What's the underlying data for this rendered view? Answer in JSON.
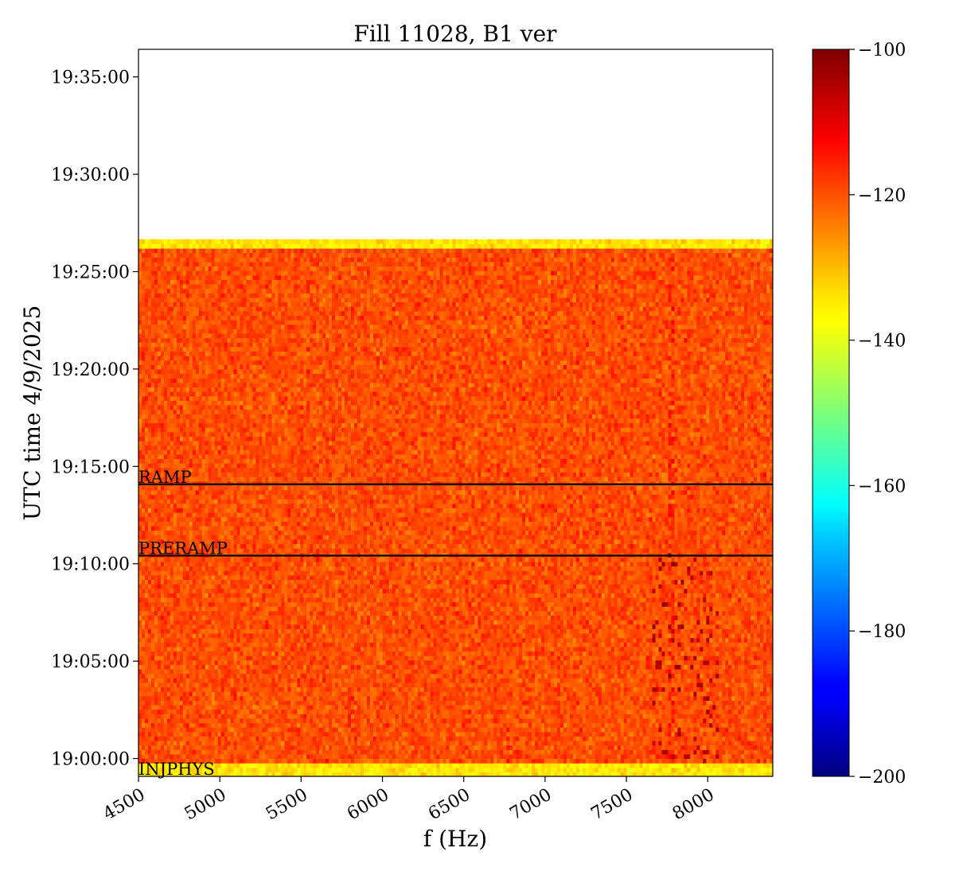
{
  "chart_data": {
    "type": "heatmap",
    "title": "Fill 11028, B1 ver",
    "xlabel": "f (Hz)",
    "ylabel": "UTC time 4/9/2025",
    "xlim": [
      4500,
      8400
    ],
    "ylim": [
      "18:59:05",
      "19:36:25"
    ],
    "x_ticks": [
      4500,
      5000,
      5500,
      6000,
      6500,
      7000,
      7500,
      8000
    ],
    "x_tick_labels": [
      "4500",
      "5000",
      "5500",
      "6000",
      "6500",
      "7000",
      "7500",
      "8000"
    ],
    "y_ticks": [
      "19:00:00",
      "19:05:00",
      "19:10:00",
      "19:15:00",
      "19:20:00",
      "19:25:00",
      "19:30:00",
      "19:35:00"
    ],
    "data_time_range": [
      "18:59:05",
      "19:26:40"
    ],
    "typical_level": -120,
    "edge_row_level": -135,
    "feature_band_hz": [
      7650,
      8050
    ],
    "feature_level": -105,
    "colorbar": {
      "colormap": "jet",
      "range": [
        -200,
        -100
      ],
      "ticks": [
        -100,
        -120,
        -140,
        -160,
        -180,
        -200
      ],
      "tick_labels": [
        "−100",
        "−120",
        "−140",
        "−160",
        "−180",
        "−200"
      ]
    },
    "annotations": [
      {
        "label": "RAMP",
        "time": "19:14:05"
      },
      {
        "label": "PRERAMP",
        "time": "19:10:25"
      },
      {
        "label": "INJPHYS",
        "time": "18:59:05"
      }
    ]
  }
}
